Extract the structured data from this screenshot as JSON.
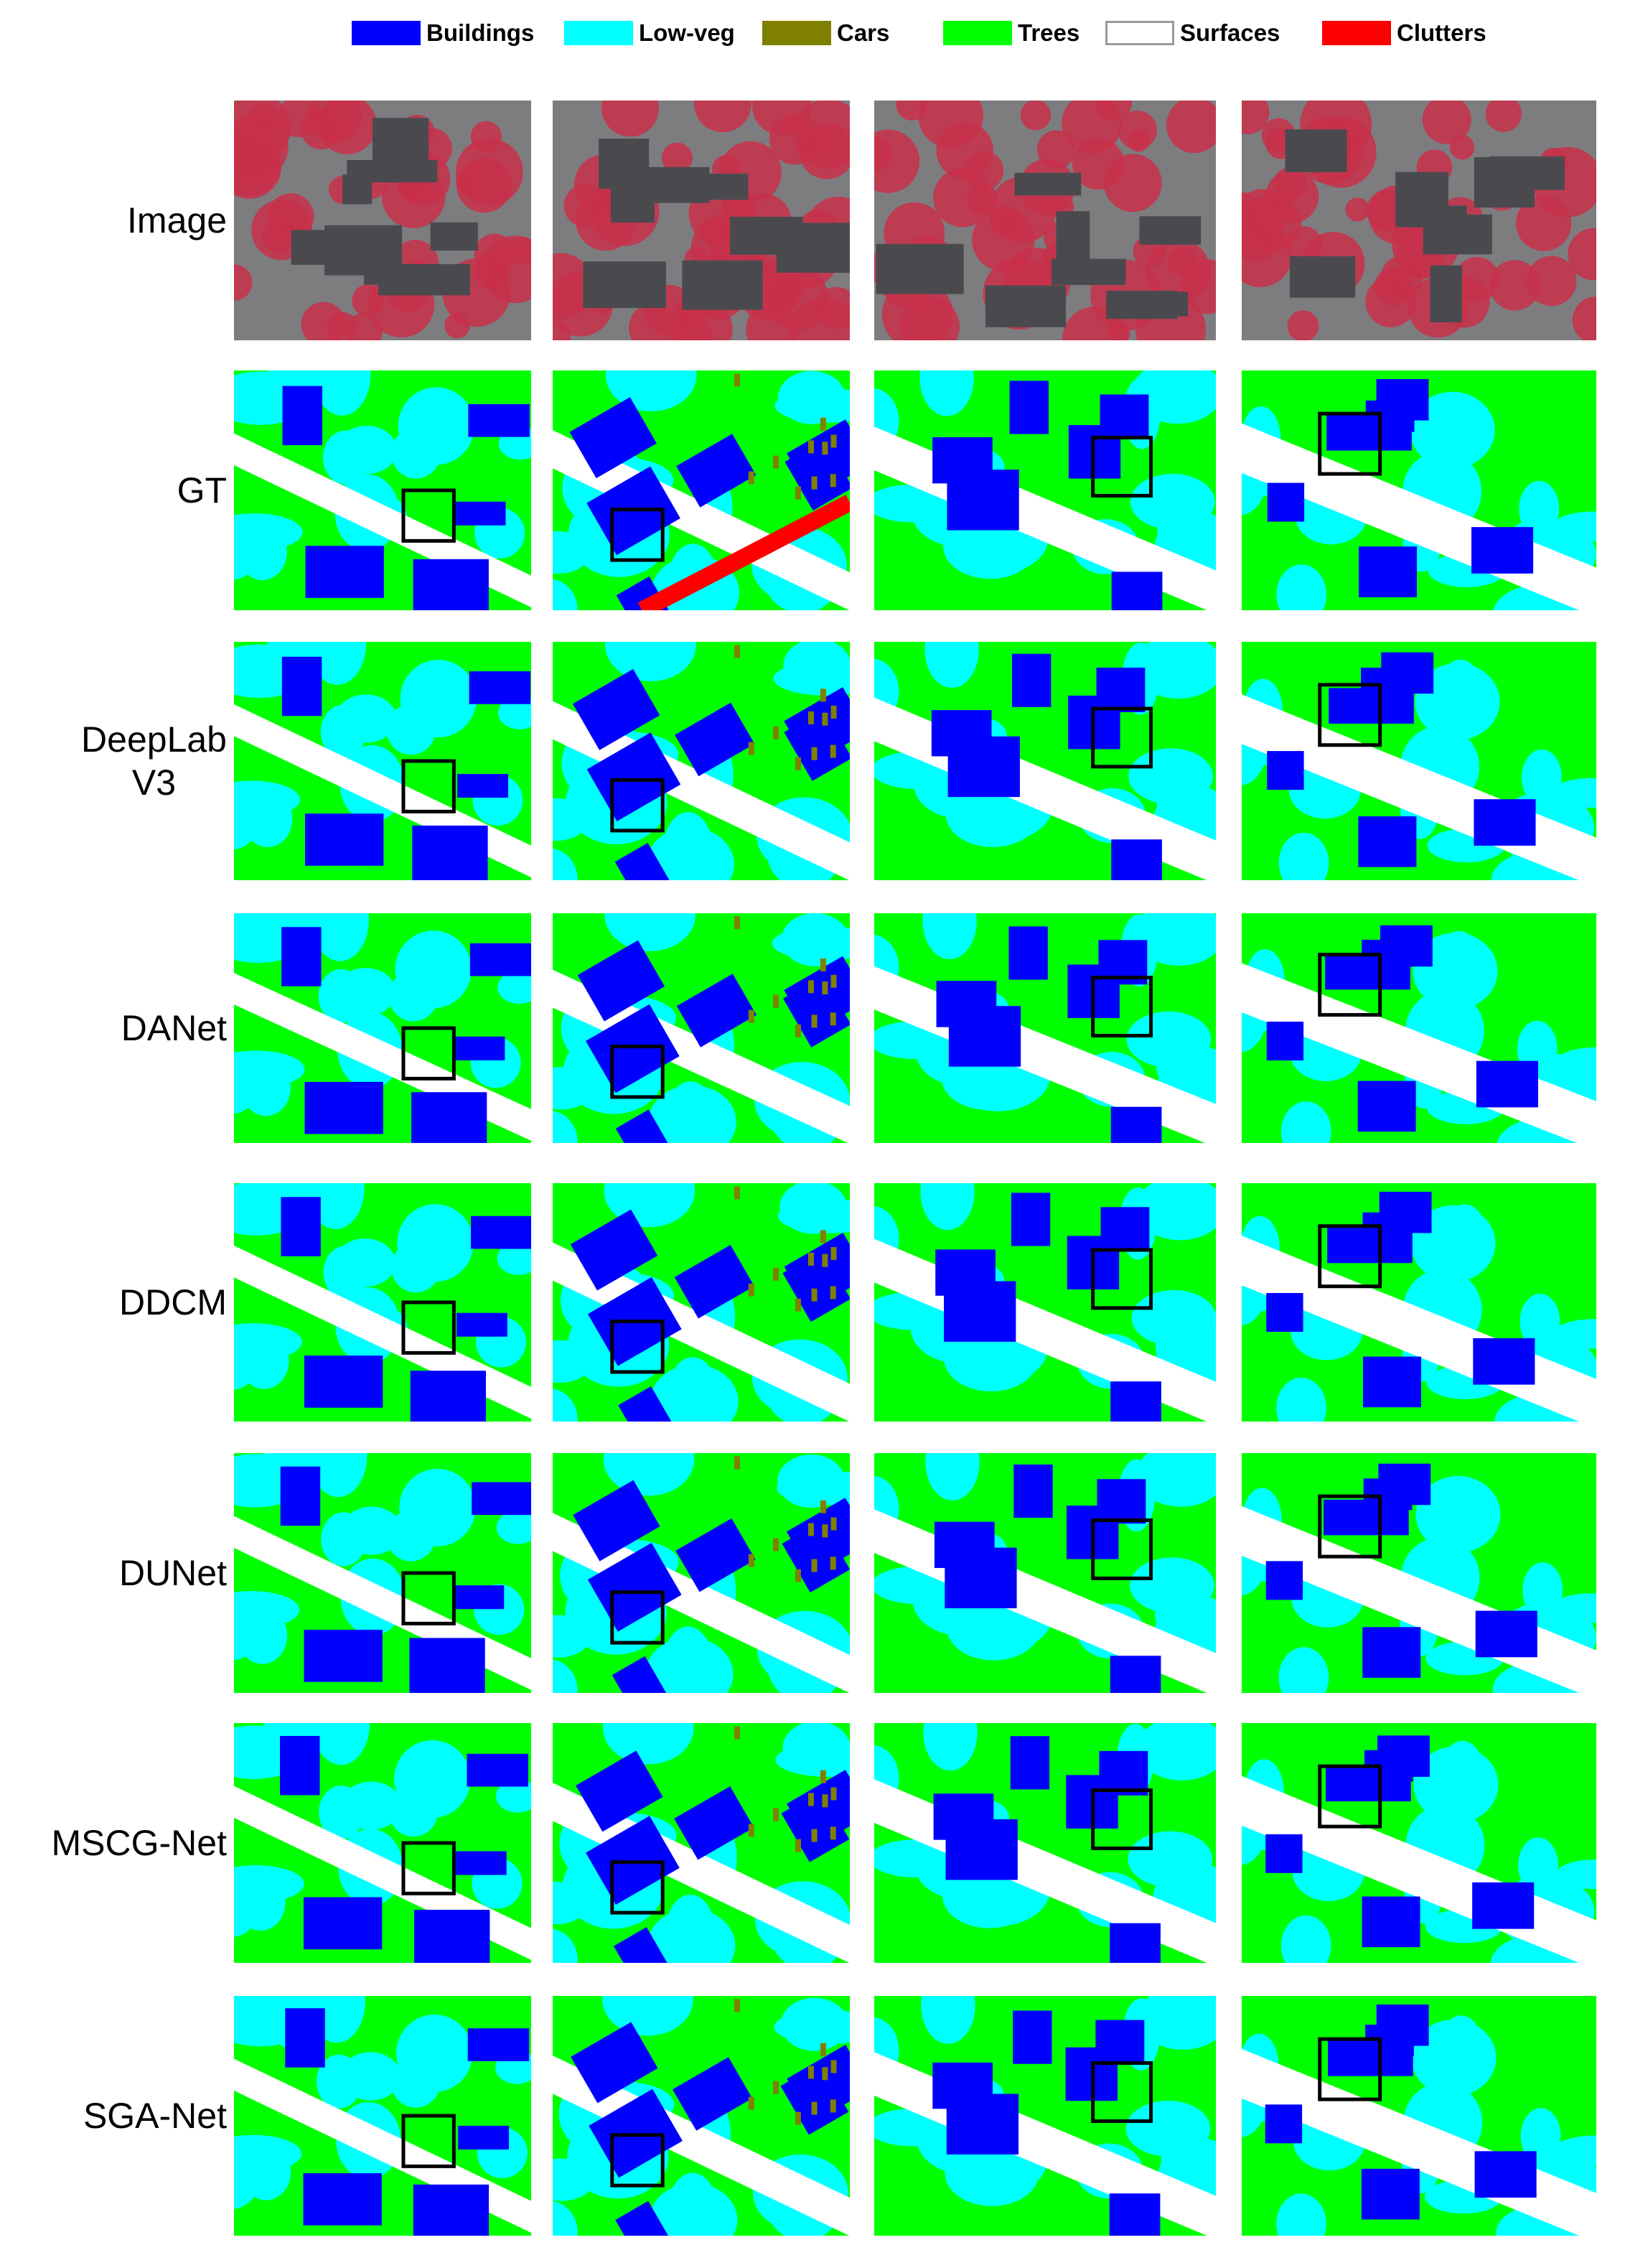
{
  "legend": [
    {
      "label": "Buildings",
      "color": "#0000ff"
    },
    {
      "label": "Low-veg",
      "color": "#00ffff"
    },
    {
      "label": "Cars",
      "color": "#808000"
    },
    {
      "label": "Trees",
      "color": "#00ff00"
    },
    {
      "label": "Surfaces",
      "color": "#ffffff"
    },
    {
      "label": "Clutters",
      "color": "#ff0000"
    }
  ],
  "rows": [
    "Image",
    "GT",
    [
      "DeepLab",
      "V3"
    ],
    "DANet",
    "DDCM",
    "DUNet",
    "MSCG-Net",
    "SGA-Net"
  ]
}
